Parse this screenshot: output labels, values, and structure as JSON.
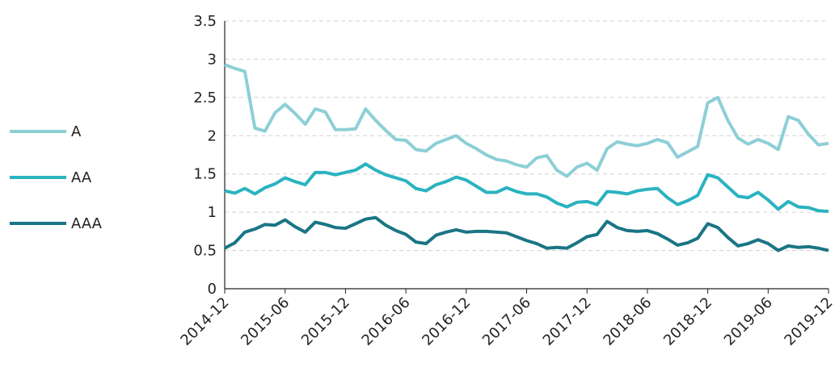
{
  "chart_data": {
    "type": "line",
    "categories": [
      "2014-12",
      null,
      null,
      null,
      null,
      null,
      "2015-06",
      null,
      null,
      null,
      null,
      null,
      "2015-12",
      null,
      null,
      null,
      null,
      null,
      "2016-06",
      null,
      null,
      null,
      null,
      null,
      "2016-12",
      null,
      null,
      null,
      null,
      null,
      "2017-06",
      null,
      null,
      null,
      null,
      null,
      "2017-12",
      null,
      null,
      null,
      null,
      null,
      "2018-06",
      null,
      null,
      null,
      null,
      null,
      "2018-12",
      null,
      null,
      null,
      null,
      null,
      "2019-06",
      null,
      null,
      null,
      null,
      null,
      "2019-12"
    ],
    "series": [
      {
        "name": "A",
        "color": "#8dcfd6",
        "values": [
          2.93,
          2.88,
          2.84,
          2.1,
          2.06,
          2.3,
          2.41,
          2.29,
          2.15,
          2.35,
          2.31,
          2.08,
          2.08,
          2.09,
          2.35,
          2.2,
          2.07,
          1.95,
          1.94,
          1.82,
          1.8,
          1.9,
          1.95,
          2.0,
          1.9,
          1.83,
          1.75,
          1.69,
          1.67,
          1.62,
          1.59,
          1.71,
          1.74,
          1.55,
          1.47,
          1.59,
          1.64,
          1.55,
          1.83,
          1.92,
          1.89,
          1.87,
          1.9,
          1.95,
          1.91,
          1.72,
          1.79,
          1.86,
          2.43,
          2.5,
          2.2,
          1.97,
          1.89,
          1.95,
          1.9,
          1.82,
          2.25,
          2.2,
          2.02,
          1.88,
          1.9
        ]
      },
      {
        "name": "AA",
        "color": "#2ab3c0",
        "values": [
          1.28,
          1.25,
          1.31,
          1.24,
          1.32,
          1.37,
          1.45,
          1.4,
          1.36,
          1.52,
          1.52,
          1.49,
          1.52,
          1.55,
          1.63,
          1.55,
          1.49,
          1.45,
          1.41,
          1.31,
          1.28,
          1.36,
          1.4,
          1.46,
          1.42,
          1.34,
          1.26,
          1.26,
          1.32,
          1.27,
          1.24,
          1.24,
          1.2,
          1.12,
          1.07,
          1.13,
          1.14,
          1.1,
          1.27,
          1.26,
          1.24,
          1.28,
          1.3,
          1.31,
          1.19,
          1.1,
          1.15,
          1.22,
          1.49,
          1.45,
          1.33,
          1.21,
          1.19,
          1.26,
          1.16,
          1.04,
          1.14,
          1.07,
          1.06,
          1.02,
          1.01
        ]
      },
      {
        "name": "AAA",
        "color": "#1a7585",
        "values": [
          0.53,
          0.6,
          0.74,
          0.78,
          0.84,
          0.83,
          0.9,
          0.81,
          0.74,
          0.87,
          0.84,
          0.8,
          0.79,
          0.85,
          0.91,
          0.93,
          0.83,
          0.76,
          0.71,
          0.61,
          0.59,
          0.7,
          0.74,
          0.77,
          0.74,
          0.75,
          0.75,
          0.74,
          0.73,
          0.68,
          0.63,
          0.59,
          0.53,
          0.54,
          0.53,
          0.6,
          0.68,
          0.71,
          0.88,
          0.8,
          0.76,
          0.75,
          0.76,
          0.72,
          0.65,
          0.57,
          0.6,
          0.66,
          0.85,
          0.8,
          0.67,
          0.56,
          0.59,
          0.64,
          0.59,
          0.5,
          0.56,
          0.54,
          0.55,
          0.53,
          0.5
        ]
      }
    ],
    "ylim": [
      0,
      3.5
    ],
    "yticks": [
      0,
      0.5,
      1,
      1.5,
      2,
      2.5,
      3,
      3.5
    ],
    "grid": true,
    "legend": "left"
  }
}
